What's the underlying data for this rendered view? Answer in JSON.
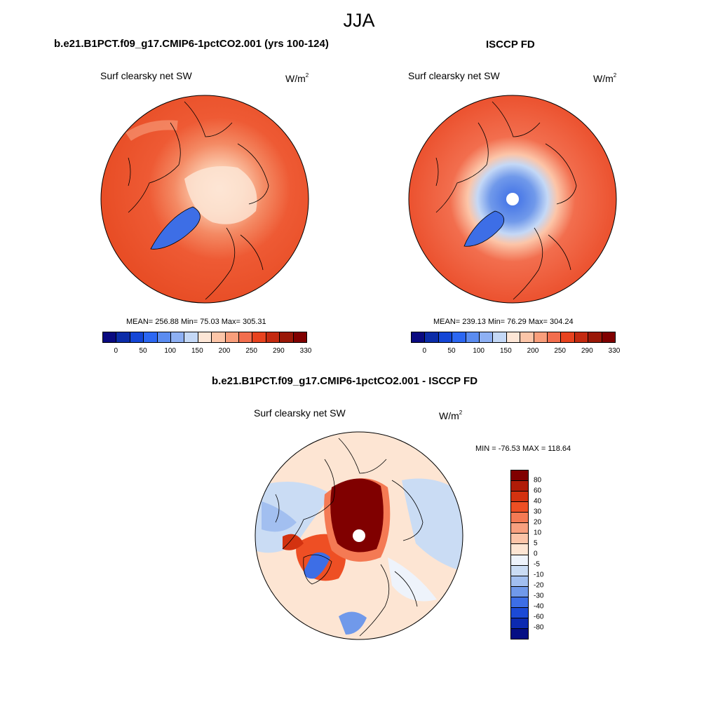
{
  "main_title": "JJA",
  "panels": [
    {
      "title": "b.e21.B1PCT.f09_g17.CMIP6-1pctCO2.001 (yrs 100-124)",
      "variable": "Surf clearsky net SW",
      "units": "W/m",
      "units_exp": "2",
      "stats": "MEAN= 256.88  Min=  75.03  Max= 305.31"
    },
    {
      "title": "ISCCP FD",
      "variable": "Surf clearsky net SW",
      "units": "W/m",
      "units_exp": "2",
      "stats": "MEAN= 239.13  Min=  76.29  Max= 304.24"
    },
    {
      "title": "b.e21.B1PCT.f09_g17.CMIP6-1pctCO2.001 - ISCCP FD",
      "variable": "Surf clearsky net SW",
      "units": "W/m",
      "units_exp": "2",
      "stats": "MIN = -76.53 MAX = 118.64"
    }
  ],
  "abs_colorbar": {
    "colors": [
      "#0a0a80",
      "#0b2ca8",
      "#1446d6",
      "#2c67f2",
      "#5b8cf0",
      "#8eb0f3",
      "#c4d8f6",
      "#fde6d6",
      "#fcc5a8",
      "#f99e7b",
      "#f26e4e",
      "#e8431f",
      "#c42a10",
      "#9a1808",
      "#800000"
    ],
    "labels": [
      "0",
      "50",
      "100",
      "150",
      "200",
      "250",
      "290",
      "330"
    ]
  },
  "diff_colorbar": {
    "colors": [
      "#800000",
      "#b01c08",
      "#d33210",
      "#ee4f24",
      "#f47a54",
      "#f8a07f",
      "#fbc4a8",
      "#fde5d3",
      "#eef3fb",
      "#cadcf4",
      "#a2bff0",
      "#7099ea",
      "#3d6ee6",
      "#1c4ad6",
      "#0c2ab0",
      "#050f84"
    ],
    "labels": [
      "80",
      "60",
      "40",
      "30",
      "20",
      "10",
      "5",
      "0",
      "-5",
      "-10",
      "-20",
      "-30",
      "-40",
      "-60",
      "-80"
    ]
  }
}
